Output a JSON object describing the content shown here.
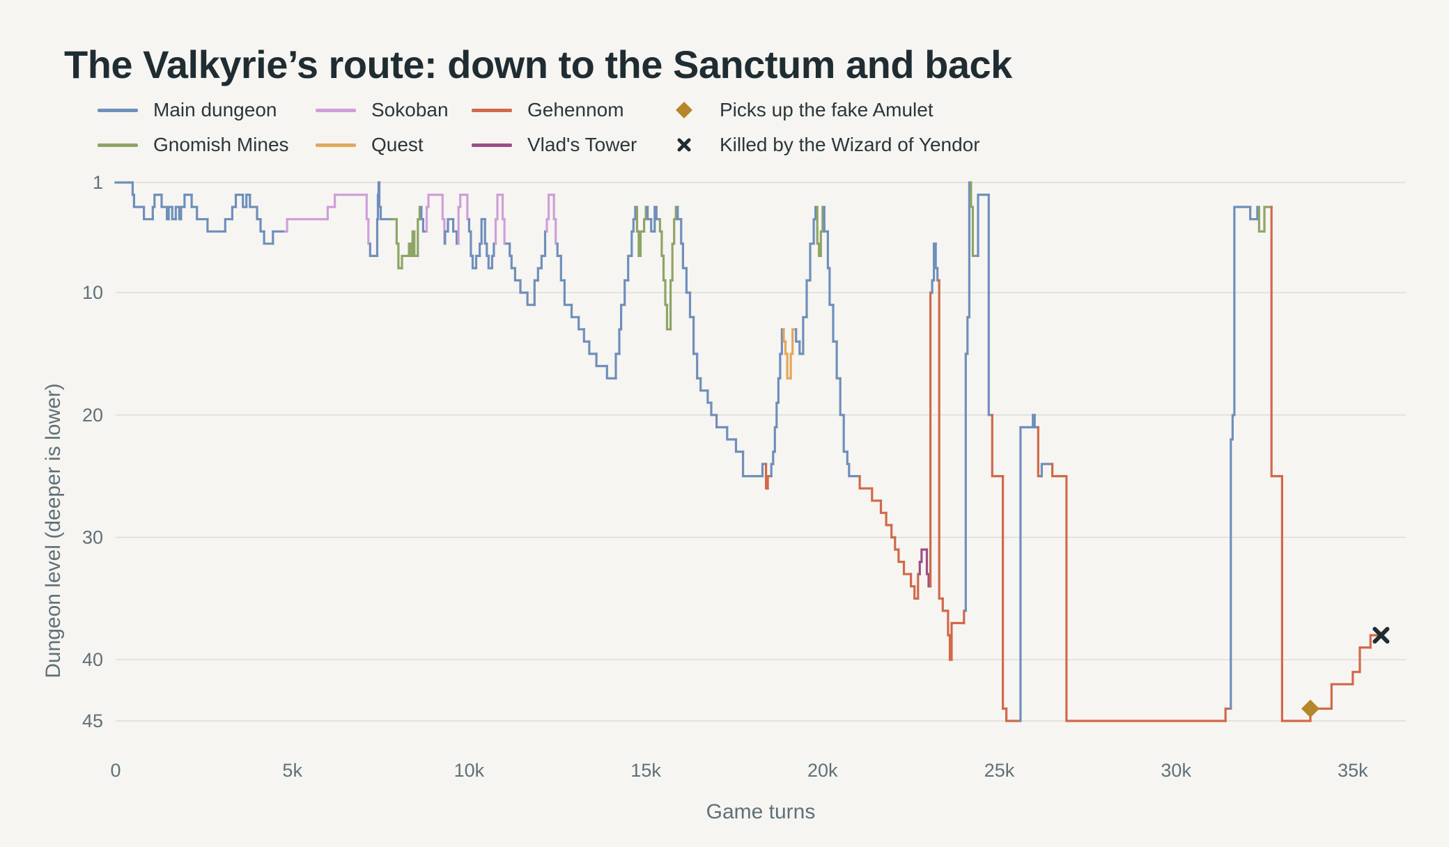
{
  "title": "The Valkyrie’s route: down to the Sanctum and back",
  "colors": {
    "Main dungeon": "#6e8fbc",
    "Gnomish Mines": "#8ea467",
    "Sokoban": "#cf9fd9",
    "Quest": "#e2a759",
    "Gehennom": "#d0694a",
    "Vlad's Tower": "#9b4f86",
    "amulet": "#b5872a",
    "death": "#1f2d33",
    "grid": "#dcdcd8",
    "text": "#5f7078"
  },
  "legend": {
    "items": [
      {
        "label": "Main dungeon",
        "kind": "line",
        "series": "Main dungeon"
      },
      {
        "label": "Sokoban",
        "kind": "line",
        "series": "Sokoban"
      },
      {
        "label": "Gehennom",
        "kind": "line",
        "series": "Gehennom"
      },
      {
        "label": "Picks up the fake Amulet",
        "kind": "diamond"
      },
      {
        "label": "Gnomish Mines",
        "kind": "line",
        "series": "Gnomish Mines"
      },
      {
        "label": "Quest",
        "kind": "line",
        "series": "Quest"
      },
      {
        "label": "Vlad's Tower",
        "kind": "line",
        "series": "Vlad's Tower"
      },
      {
        "label": "Killed by the Wizard of Yendor",
        "kind": "cross"
      }
    ]
  },
  "chart_data": {
    "type": "line",
    "step": true,
    "title": "The Valkyrie’s route: down to the Sanctum and back",
    "xlabel": "Game turns",
    "ylabel": "Dungeon level (deeper is lower)",
    "xlim": [
      0,
      36500
    ],
    "ylim": [
      1,
      45
    ],
    "y_inverted": true,
    "grid": "horizontal",
    "legend_position": "top",
    "xticks": [
      0,
      5000,
      10000,
      15000,
      20000,
      25000,
      30000,
      35000
    ],
    "xtick_labels": [
      "0",
      "5k",
      "10k",
      "15k",
      "20k",
      "25k",
      "30k",
      "35k"
    ],
    "yticks": [
      1,
      10,
      20,
      30,
      40,
      45
    ],
    "ytick_labels": [
      "1",
      "10",
      "20",
      "30",
      "40",
      "45"
    ],
    "path": [
      [
        0,
        1,
        "Main dungeon"
      ],
      [
        380,
        1,
        "Main dungeon"
      ],
      [
        480,
        2,
        "Main dungeon"
      ],
      [
        520,
        3,
        "Main dungeon"
      ],
      [
        800,
        4,
        "Main dungeon"
      ],
      [
        1050,
        3,
        "Main dungeon"
      ],
      [
        1100,
        2,
        "Main dungeon"
      ],
      [
        1300,
        3,
        "Main dungeon"
      ],
      [
        1450,
        4,
        "Main dungeon"
      ],
      [
        1500,
        3,
        "Main dungeon"
      ],
      [
        1600,
        4,
        "Main dungeon"
      ],
      [
        1700,
        3,
        "Main dungeon"
      ],
      [
        1800,
        4,
        "Main dungeon"
      ],
      [
        1850,
        3,
        "Main dungeon"
      ],
      [
        1950,
        2,
        "Main dungeon"
      ],
      [
        2150,
        3,
        "Main dungeon"
      ],
      [
        2300,
        4,
        "Main dungeon"
      ],
      [
        2600,
        5,
        "Main dungeon"
      ],
      [
        3100,
        4,
        "Main dungeon"
      ],
      [
        3300,
        3,
        "Main dungeon"
      ],
      [
        3400,
        2,
        "Main dungeon"
      ],
      [
        3600,
        3,
        "Main dungeon"
      ],
      [
        3700,
        2,
        "Main dungeon"
      ],
      [
        3800,
        3,
        "Main dungeon"
      ],
      [
        4000,
        4,
        "Main dungeon"
      ],
      [
        4100,
        5,
        "Main dungeon"
      ],
      [
        4200,
        6,
        "Main dungeon"
      ],
      [
        4450,
        5,
        "Main dungeon"
      ],
      [
        4800,
        5,
        "Sokoban"
      ],
      [
        4850,
        4,
        "Sokoban"
      ],
      [
        5800,
        4,
        "Sokoban"
      ],
      [
        6000,
        3,
        "Sokoban"
      ],
      [
        6200,
        2,
        "Sokoban"
      ],
      [
        7000,
        2,
        "Sokoban"
      ],
      [
        7100,
        4,
        "Sokoban"
      ],
      [
        7150,
        6,
        "Sokoban"
      ],
      [
        7200,
        7,
        "Main dungeon"
      ],
      [
        7400,
        4,
        "Main dungeon"
      ],
      [
        7420,
        2,
        "Main dungeon"
      ],
      [
        7440,
        1,
        "Main dungeon"
      ],
      [
        7460,
        3,
        "Main dungeon"
      ],
      [
        7500,
        4,
        "Main dungeon"
      ],
      [
        7800,
        4,
        "Gnomish Mines"
      ],
      [
        7950,
        6,
        "Gnomish Mines"
      ],
      [
        8000,
        8,
        "Gnomish Mines"
      ],
      [
        8100,
        7,
        "Gnomish Mines"
      ],
      [
        8300,
        6,
        "Gnomish Mines"
      ],
      [
        8350,
        7,
        "Gnomish Mines"
      ],
      [
        8400,
        5,
        "Gnomish Mines"
      ],
      [
        8450,
        7,
        "Gnomish Mines"
      ],
      [
        8550,
        4,
        "Gnomish Mines"
      ],
      [
        8600,
        3,
        "Gnomish Mines"
      ],
      [
        8650,
        4,
        "Main dungeon"
      ],
      [
        8700,
        5,
        "Main dungeon"
      ],
      [
        8800,
        3,
        "Sokoban"
      ],
      [
        8850,
        2,
        "Sokoban"
      ],
      [
        9200,
        2,
        "Sokoban"
      ],
      [
        9250,
        4,
        "Sokoban"
      ],
      [
        9300,
        6,
        "Sokoban"
      ],
      [
        9320,
        5,
        "Main dungeon"
      ],
      [
        9400,
        4,
        "Main dungeon"
      ],
      [
        9550,
        5,
        "Main dungeon"
      ],
      [
        9650,
        6,
        "Main dungeon"
      ],
      [
        9700,
        3,
        "Sokoban"
      ],
      [
        9750,
        2,
        "Sokoban"
      ],
      [
        9900,
        2,
        "Sokoban"
      ],
      [
        9950,
        4,
        "Sokoban"
      ],
      [
        10000,
        5,
        "Main dungeon"
      ],
      [
        10050,
        7,
        "Main dungeon"
      ],
      [
        10100,
        8,
        "Main dungeon"
      ],
      [
        10200,
        7,
        "Main dungeon"
      ],
      [
        10300,
        6,
        "Main dungeon"
      ],
      [
        10350,
        4,
        "Main dungeon"
      ],
      [
        10450,
        6,
        "Main dungeon"
      ],
      [
        10500,
        7,
        "Main dungeon"
      ],
      [
        10550,
        8,
        "Main dungeon"
      ],
      [
        10650,
        7,
        "Main dungeon"
      ],
      [
        10700,
        6,
        "Main dungeon"
      ],
      [
        10750,
        4,
        "Sokoban"
      ],
      [
        10800,
        2,
        "Sokoban"
      ],
      [
        10900,
        2,
        "Sokoban"
      ],
      [
        10950,
        4,
        "Sokoban"
      ],
      [
        11000,
        6,
        "Sokoban"
      ],
      [
        11050,
        6,
        "Main dungeon"
      ],
      [
        11150,
        7,
        "Main dungeon"
      ],
      [
        11200,
        8,
        "Main dungeon"
      ],
      [
        11300,
        9,
        "Main dungeon"
      ],
      [
        11450,
        10,
        "Main dungeon"
      ],
      [
        11650,
        11,
        "Main dungeon"
      ],
      [
        11850,
        9,
        "Main dungeon"
      ],
      [
        11950,
        8,
        "Main dungeon"
      ],
      [
        12050,
        7,
        "Main dungeon"
      ],
      [
        12150,
        5,
        "Main dungeon"
      ],
      [
        12200,
        4,
        "Sokoban"
      ],
      [
        12250,
        2,
        "Sokoban"
      ],
      [
        12350,
        2,
        "Sokoban"
      ],
      [
        12400,
        4,
        "Sokoban"
      ],
      [
        12450,
        6,
        "Sokoban"
      ],
      [
        12500,
        7,
        "Main dungeon"
      ],
      [
        12600,
        9,
        "Main dungeon"
      ],
      [
        12700,
        11,
        "Main dungeon"
      ],
      [
        12900,
        12,
        "Main dungeon"
      ],
      [
        13100,
        13,
        "Main dungeon"
      ],
      [
        13250,
        14,
        "Main dungeon"
      ],
      [
        13400,
        15,
        "Main dungeon"
      ],
      [
        13600,
        16,
        "Main dungeon"
      ],
      [
        13900,
        17,
        "Main dungeon"
      ],
      [
        14150,
        15,
        "Main dungeon"
      ],
      [
        14250,
        13,
        "Main dungeon"
      ],
      [
        14300,
        11,
        "Main dungeon"
      ],
      [
        14400,
        9,
        "Main dungeon"
      ],
      [
        14500,
        7,
        "Main dungeon"
      ],
      [
        14600,
        5,
        "Main dungeon"
      ],
      [
        14650,
        4,
        "Main dungeon"
      ],
      [
        14700,
        3,
        "Main dungeon"
      ],
      [
        14750,
        5,
        "Gnomish Mines"
      ],
      [
        14800,
        7,
        "Gnomish Mines"
      ],
      [
        14850,
        5,
        "Gnomish Mines"
      ],
      [
        14950,
        4,
        "Gnomish Mines"
      ],
      [
        15000,
        3,
        "Gnomish Mines"
      ],
      [
        15050,
        4,
        "Main dungeon"
      ],
      [
        15150,
        5,
        "Main dungeon"
      ],
      [
        15250,
        3,
        "Main dungeon"
      ],
      [
        15300,
        4,
        "Main dungeon"
      ],
      [
        15400,
        5,
        "Gnomish Mines"
      ],
      [
        15450,
        7,
        "Gnomish Mines"
      ],
      [
        15500,
        9,
        "Gnomish Mines"
      ],
      [
        15550,
        11,
        "Gnomish Mines"
      ],
      [
        15600,
        13,
        "Gnomish Mines"
      ],
      [
        15700,
        9,
        "Gnomish Mines"
      ],
      [
        15750,
        6,
        "Gnomish Mines"
      ],
      [
        15800,
        4,
        "Gnomish Mines"
      ],
      [
        15850,
        3,
        "Gnomish Mines"
      ],
      [
        15900,
        4,
        "Main dungeon"
      ],
      [
        16000,
        6,
        "Main dungeon"
      ],
      [
        16050,
        8,
        "Main dungeon"
      ],
      [
        16150,
        10,
        "Main dungeon"
      ],
      [
        16250,
        12,
        "Main dungeon"
      ],
      [
        16350,
        15,
        "Main dungeon"
      ],
      [
        16450,
        17,
        "Main dungeon"
      ],
      [
        16550,
        18,
        "Main dungeon"
      ],
      [
        16750,
        19,
        "Main dungeon"
      ],
      [
        16850,
        20,
        "Main dungeon"
      ],
      [
        17000,
        21,
        "Main dungeon"
      ],
      [
        17300,
        22,
        "Main dungeon"
      ],
      [
        17550,
        23,
        "Main dungeon"
      ],
      [
        17750,
        25,
        "Main dungeon"
      ],
      [
        18300,
        24,
        "Main dungeon"
      ],
      [
        18400,
        26,
        "Gehennom"
      ],
      [
        18450,
        25,
        "Gehennom"
      ],
      [
        18550,
        24,
        "Main dungeon"
      ],
      [
        18600,
        23,
        "Main dungeon"
      ],
      [
        18650,
        21,
        "Main dungeon"
      ],
      [
        18700,
        19,
        "Main dungeon"
      ],
      [
        18750,
        17,
        "Main dungeon"
      ],
      [
        18800,
        15,
        "Main dungeon"
      ],
      [
        18850,
        13,
        "Main dungeon"
      ],
      [
        18900,
        14,
        "Quest"
      ],
      [
        18950,
        15,
        "Quest"
      ],
      [
        19000,
        17,
        "Quest"
      ],
      [
        19100,
        15,
        "Quest"
      ],
      [
        19150,
        13,
        "Quest"
      ],
      [
        19250,
        14,
        "Main dungeon"
      ],
      [
        19350,
        15,
        "Main dungeon"
      ],
      [
        19450,
        12,
        "Main dungeon"
      ],
      [
        19550,
        9,
        "Main dungeon"
      ],
      [
        19650,
        6,
        "Main dungeon"
      ],
      [
        19750,
        4,
        "Main dungeon"
      ],
      [
        19800,
        3,
        "Main dungeon"
      ],
      [
        19850,
        6,
        "Gnomish Mines"
      ],
      [
        19900,
        7,
        "Gnomish Mines"
      ],
      [
        19950,
        5,
        "Gnomish Mines"
      ],
      [
        20000,
        3,
        "Gnomish Mines"
      ],
      [
        20050,
        5,
        "Main dungeon"
      ],
      [
        20150,
        8,
        "Main dungeon"
      ],
      [
        20200,
        11,
        "Main dungeon"
      ],
      [
        20300,
        14,
        "Main dungeon"
      ],
      [
        20400,
        17,
        "Main dungeon"
      ],
      [
        20500,
        20,
        "Main dungeon"
      ],
      [
        20600,
        23,
        "Main dungeon"
      ],
      [
        20700,
        24,
        "Main dungeon"
      ],
      [
        20750,
        25,
        "Main dungeon"
      ],
      [
        21050,
        26,
        "Gehennom"
      ],
      [
        21400,
        27,
        "Gehennom"
      ],
      [
        21650,
        28,
        "Gehennom"
      ],
      [
        21800,
        29,
        "Gehennom"
      ],
      [
        21950,
        30,
        "Gehennom"
      ],
      [
        22050,
        31,
        "Gehennom"
      ],
      [
        22150,
        32,
        "Gehennom"
      ],
      [
        22300,
        33,
        "Gehennom"
      ],
      [
        22500,
        34,
        "Gehennom"
      ],
      [
        22600,
        35,
        "Gehennom"
      ],
      [
        22700,
        33,
        "Gehennom"
      ],
      [
        22750,
        32,
        "Vlad's Tower"
      ],
      [
        22800,
        31,
        "Vlad's Tower"
      ],
      [
        22950,
        33,
        "Vlad's Tower"
      ],
      [
        23000,
        34,
        "Vlad's Tower"
      ],
      [
        23050,
        10,
        "Gehennom"
      ],
      [
        23100,
        9,
        "Main dungeon"
      ],
      [
        23150,
        6,
        "Main dungeon"
      ],
      [
        23200,
        8,
        "Main dungeon"
      ],
      [
        23250,
        9,
        "Main dungeon"
      ],
      [
        23300,
        35,
        "Gehennom"
      ],
      [
        23400,
        36,
        "Gehennom"
      ],
      [
        23550,
        38,
        "Gehennom"
      ],
      [
        23600,
        40,
        "Gehennom"
      ],
      [
        23650,
        37,
        "Gehennom"
      ],
      [
        24000,
        36,
        "Gehennom"
      ],
      [
        24050,
        15,
        "Main dungeon"
      ],
      [
        24100,
        12,
        "Main dungeon"
      ],
      [
        24150,
        1,
        "Main dungeon"
      ],
      [
        24200,
        3,
        "Gnomish Mines"
      ],
      [
        24250,
        7,
        "Gnomish Mines"
      ],
      [
        24400,
        2,
        "Main dungeon"
      ],
      [
        24700,
        20,
        "Main dungeon"
      ],
      [
        24800,
        25,
        "Gehennom"
      ],
      [
        25100,
        44,
        "Gehennom"
      ],
      [
        25200,
        45,
        "Gehennom"
      ],
      [
        25600,
        21,
        "Main dungeon"
      ],
      [
        25950,
        20,
        "Main dungeon"
      ],
      [
        26000,
        21,
        "Main dungeon"
      ],
      [
        26100,
        25,
        "Gehennom"
      ],
      [
        26200,
        24,
        "Main dungeon"
      ],
      [
        26500,
        25,
        "Gehennom"
      ],
      [
        26900,
        45,
        "Gehennom"
      ],
      [
        31400,
        44,
        "Gehennom"
      ],
      [
        31550,
        22,
        "Main dungeon"
      ],
      [
        31600,
        20,
        "Main dungeon"
      ],
      [
        31650,
        3,
        "Main dungeon"
      ],
      [
        32100,
        4,
        "Main dungeon"
      ],
      [
        32300,
        3,
        "Main dungeon"
      ],
      [
        32350,
        5,
        "Gnomish Mines"
      ],
      [
        32500,
        3,
        "Gnomish Mines"
      ],
      [
        32700,
        25,
        "Gehennom"
      ],
      [
        33000,
        45,
        "Gehennom"
      ],
      [
        33800,
        44,
        "Gehennom"
      ],
      [
        34400,
        42,
        "Gehennom"
      ],
      [
        35000,
        41,
        "Gehennom"
      ],
      [
        35200,
        39,
        "Gehennom"
      ],
      [
        35500,
        38,
        "Gehennom"
      ],
      [
        35800,
        38,
        "Gehennom"
      ]
    ],
    "markers": [
      {
        "label": "Picks up the fake Amulet",
        "x": 33800,
        "y": 44,
        "shape": "diamond"
      },
      {
        "label": "Killed by the Wizard of Yendor",
        "x": 35800,
        "y": 38,
        "shape": "cross"
      }
    ]
  }
}
